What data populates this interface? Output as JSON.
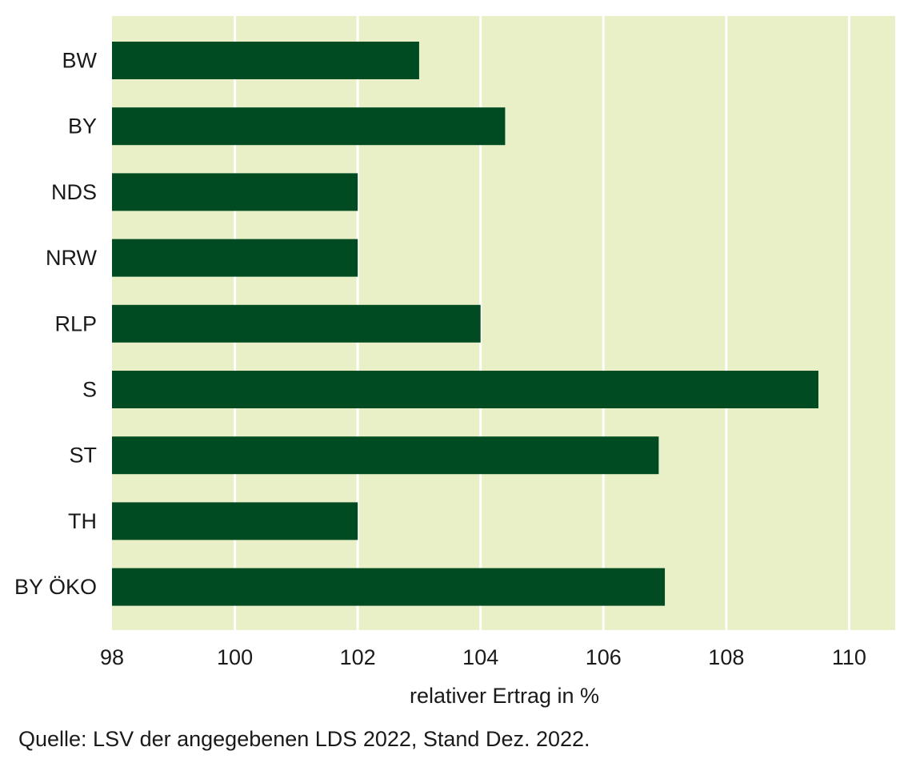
{
  "chart_data": {
    "type": "bar",
    "orientation": "horizontal",
    "categories": [
      "BW",
      "BY",
      "NDS",
      "NRW",
      "RLP",
      "S",
      "ST",
      "TH",
      "BY ÖKO"
    ],
    "values": [
      103.0,
      104.4,
      102.0,
      102.0,
      104.0,
      109.5,
      106.9,
      102.0,
      107.0
    ],
    "xlabel": "relativer Ertrag in %",
    "ylabel": "",
    "xlim": [
      98,
      110.75
    ],
    "xticks": [
      98,
      100,
      102,
      104,
      106,
      108,
      110
    ],
    "grid": true,
    "colors": {
      "bar": "#004b21",
      "background": "#e9f0c8",
      "grid": "#ffffff"
    }
  },
  "source_note": "Quelle: LSV der angegebenen LDS 2022, Stand Dez. 2022."
}
